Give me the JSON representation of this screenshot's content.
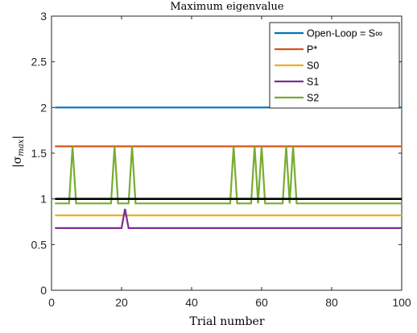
{
  "chart_data": {
    "type": "line",
    "title": "Maximum eigenvalue",
    "xlabel": "Trial number",
    "ylabel": "|σmax|",
    "xlim": [
      0,
      100
    ],
    "ylim": [
      0,
      3
    ],
    "xticks": [
      0,
      20,
      40,
      60,
      80,
      100
    ],
    "yticks": [
      0,
      0.5,
      1,
      1.5,
      2,
      2.5,
      3
    ],
    "grid": false,
    "legend_position": "top-right",
    "series": [
      {
        "name": "Open-Loop = S∞",
        "color": "#0072BD",
        "in_legend": true,
        "points": [
          [
            1,
            2.0
          ],
          [
            100,
            2.0
          ]
        ]
      },
      {
        "name": "P*",
        "color": "#D95319",
        "in_legend": true,
        "points": [
          [
            1,
            1.575
          ],
          [
            100,
            1.575
          ]
        ]
      },
      {
        "name": "S0",
        "color": "#EDB120",
        "in_legend": true,
        "points": [
          [
            1,
            0.82
          ],
          [
            100,
            0.82
          ]
        ]
      },
      {
        "name": "S1",
        "color": "#7E2F8E",
        "in_legend": true,
        "points": [
          [
            1,
            0.68
          ],
          [
            20,
            0.68
          ],
          [
            21,
            0.89
          ],
          [
            22,
            0.68
          ],
          [
            100,
            0.68
          ]
        ]
      },
      {
        "name": "S2",
        "color": "#77AC30",
        "in_legend": true,
        "points": [
          [
            1,
            0.95
          ],
          [
            5,
            0.95
          ],
          [
            6,
            1.575
          ],
          [
            7,
            0.95
          ],
          [
            17,
            0.95
          ],
          [
            18,
            1.575
          ],
          [
            19,
            0.95
          ],
          [
            22,
            0.95
          ],
          [
            23,
            1.575
          ],
          [
            24,
            0.95
          ],
          [
            51,
            0.95
          ],
          [
            52,
            1.575
          ],
          [
            53,
            0.95
          ],
          [
            57,
            0.95
          ],
          [
            58,
            1.575
          ],
          [
            59,
            0.95
          ],
          [
            60,
            1.575
          ],
          [
            61,
            0.95
          ],
          [
            66,
            0.95
          ],
          [
            67,
            1.575
          ],
          [
            68,
            0.95
          ],
          [
            69,
            1.575
          ],
          [
            70,
            0.95
          ],
          [
            100,
            0.95
          ]
        ]
      },
      {
        "name": "",
        "color": "#000000",
        "in_legend": false,
        "points": [
          [
            1,
            1.0
          ],
          [
            100,
            1.0
          ]
        ]
      }
    ]
  }
}
